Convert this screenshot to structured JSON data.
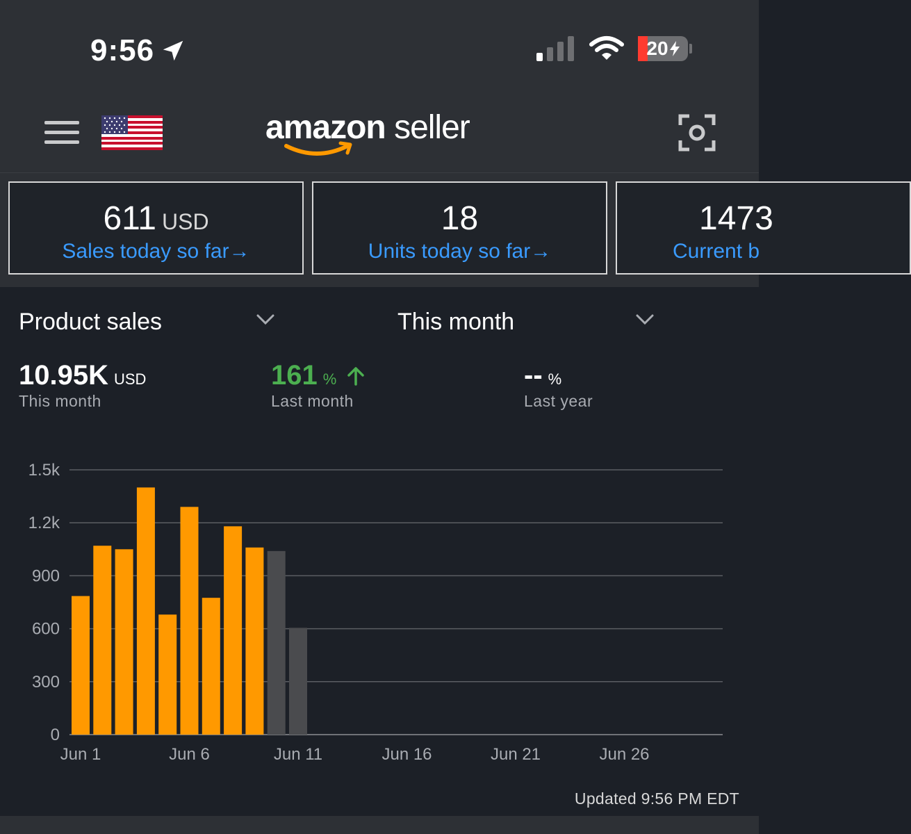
{
  "status_bar": {
    "time": "9:56",
    "battery": "20"
  },
  "header": {
    "logo_bold": "amazon",
    "logo_light": "seller"
  },
  "cards": [
    {
      "value": "611",
      "unit": "USD",
      "link": "Sales today so far"
    },
    {
      "value": "18",
      "unit": "",
      "link": "Units today so far"
    },
    {
      "value": "1473",
      "unit": "",
      "link": "Current b"
    }
  ],
  "card_arrow": "→",
  "selectors": {
    "metric": "Product sales",
    "period": "This month"
  },
  "stats": {
    "this_month": {
      "value": "10.95K",
      "unit": "USD",
      "label": "This month"
    },
    "last_month": {
      "value": "161",
      "unit": "%",
      "label": "Last month"
    },
    "last_year": {
      "value": "--",
      "unit": "%",
      "label": "Last year"
    }
  },
  "colors": {
    "accent": "#ff9900",
    "link": "#3a9bff",
    "positive": "#4caf50",
    "pending": "#4a4b4e"
  },
  "chart_data": {
    "type": "bar",
    "title": "",
    "xlabel": "",
    "ylabel": "",
    "ylim": [
      0,
      1500
    ],
    "y_ticks": [
      0,
      300,
      600,
      900,
      1200,
      1500
    ],
    "y_tick_labels": [
      "0",
      "300",
      "600",
      "900",
      "1.2k",
      "1.5k"
    ],
    "x_day_range": [
      1,
      30
    ],
    "x_tick_days": [
      1,
      6,
      11,
      16,
      21,
      26
    ],
    "x_tick_labels": [
      "Jun 1",
      "Jun 6",
      "Jun 11",
      "Jun 16",
      "Jun 21",
      "Jun 26"
    ],
    "days": [
      1,
      2,
      3,
      4,
      5,
      6,
      7,
      8,
      9,
      10,
      11
    ],
    "values": [
      785,
      1070,
      1050,
      1400,
      680,
      1290,
      775,
      1180,
      1060,
      1040,
      605
    ],
    "status": [
      "final",
      "final",
      "final",
      "final",
      "final",
      "final",
      "final",
      "final",
      "final",
      "pending",
      "pending"
    ]
  },
  "footer": {
    "updated": "Updated 9:56 PM EDT"
  }
}
